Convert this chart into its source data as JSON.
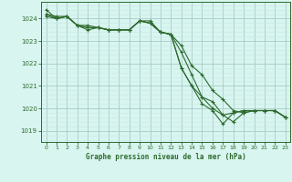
{
  "title": "Graphe pression niveau de la mer (hPa)",
  "background_color": "#d8f5f0",
  "line_color": "#2d6a2d",
  "grid_color_major": "#a8ccc8",
  "grid_color_minor": "#c8e8e4",
  "ylim": [
    1018.5,
    1024.75
  ],
  "xlim": [
    -0.5,
    23.5
  ],
  "yticks": [
    1019,
    1020,
    1021,
    1022,
    1023,
    1024
  ],
  "xticks": [
    0,
    1,
    2,
    3,
    4,
    5,
    6,
    7,
    8,
    9,
    10,
    11,
    12,
    13,
    14,
    15,
    16,
    17,
    18,
    19,
    20,
    21,
    22,
    23
  ],
  "series": [
    [
      1024.4,
      1024.0,
      1024.1,
      1023.7,
      1023.7,
      1023.6,
      1023.5,
      1023.5,
      1023.5,
      1023.9,
      1023.9,
      1023.4,
      1023.3,
      1022.8,
      1021.9,
      1021.5,
      1020.8,
      1020.4,
      1019.9,
      1019.8,
      1019.9,
      1019.9,
      1019.9,
      1019.6
    ],
    [
      1024.2,
      1024.1,
      1024.1,
      1023.7,
      1023.6,
      1023.6,
      1023.5,
      1023.5,
      1023.5,
      1023.9,
      1023.8,
      1023.4,
      1023.3,
      1022.5,
      1021.5,
      1020.5,
      1020.3,
      1019.7,
      1019.4,
      1019.8,
      1019.9,
      1019.9,
      1019.9,
      1019.6
    ],
    [
      1024.2,
      1024.0,
      1024.1,
      1023.7,
      1023.6,
      1023.6,
      1023.5,
      1023.5,
      1023.5,
      1023.9,
      1023.8,
      1023.4,
      1023.3,
      1021.8,
      1021.0,
      1020.2,
      1019.9,
      1019.3,
      1019.8,
      1019.9,
      1019.9,
      1019.9,
      1019.9,
      1019.6
    ],
    [
      1024.1,
      1024.0,
      1024.1,
      1023.7,
      1023.5,
      1023.6,
      1023.5,
      1023.5,
      1023.5,
      1023.9,
      1023.8,
      1023.4,
      1023.3,
      1021.8,
      1021.0,
      1020.5,
      1020.0,
      1019.7,
      1019.8,
      1019.9,
      1019.9,
      1019.9,
      1019.9,
      1019.6
    ]
  ]
}
